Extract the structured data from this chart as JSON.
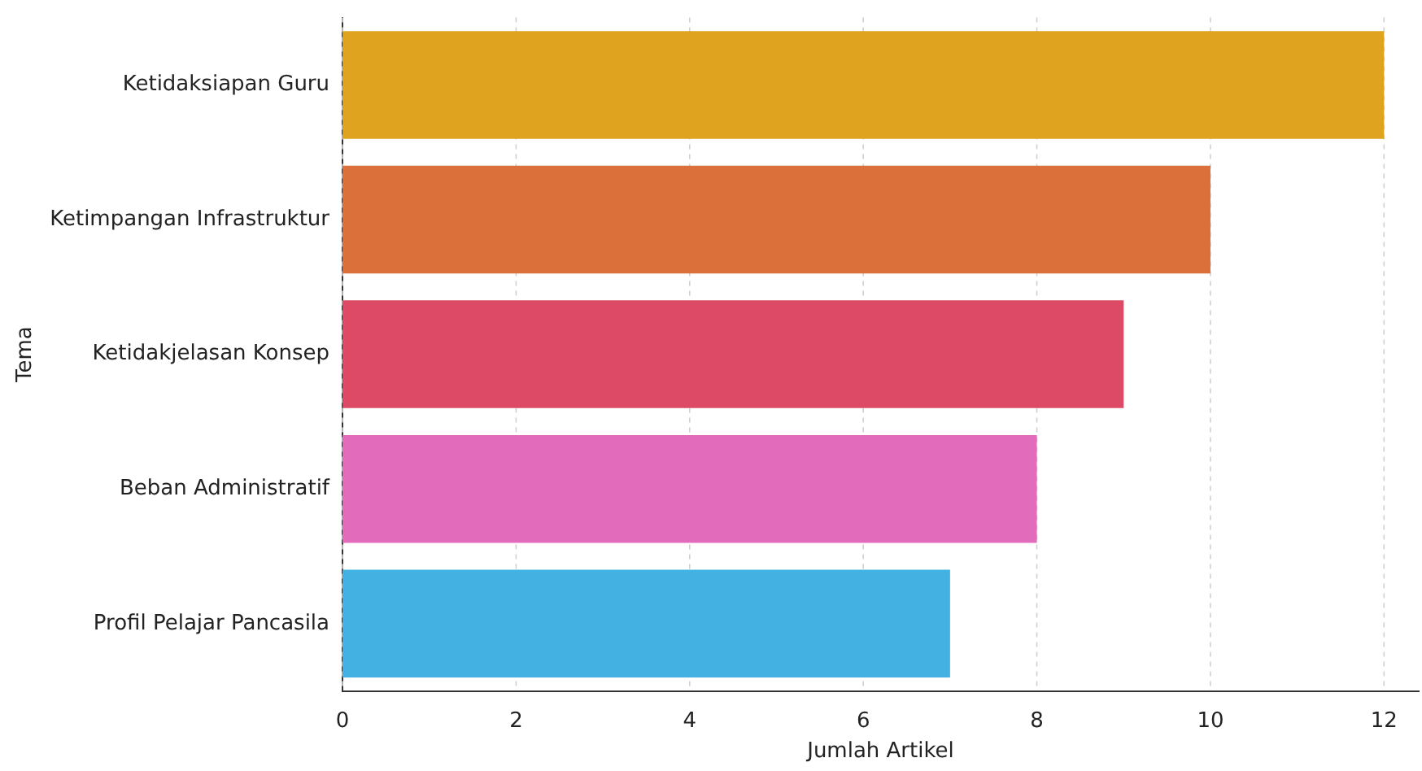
{
  "chart_data": {
    "type": "bar",
    "orientation": "horizontal",
    "xlabel": "Jumlah Artikel",
    "ylabel": "Tema",
    "categories": [
      "Ketidaksiapan Guru",
      "Ketimpangan Infrastruktur",
      "Ketidakjelasan Konsep",
      "Beban Administratif",
      "Profil Pelajar Pancasila"
    ],
    "values": [
      12,
      10,
      9,
      8,
      7
    ],
    "colors": [
      "#e0a31f",
      "#db703a",
      "#dc4a66",
      "#e36bbb",
      "#43b2e2"
    ],
    "xlim": [
      0,
      12.4
    ],
    "xticks": [
      0,
      2,
      4,
      6,
      8,
      10,
      12
    ],
    "grid": "x",
    "legend": false
  }
}
